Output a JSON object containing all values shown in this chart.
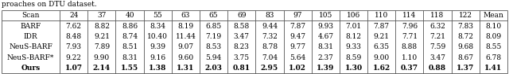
{
  "caption": "proaches on DTU dataset.",
  "columns": [
    "Scan",
    "24",
    "37",
    "40",
    "55",
    "63",
    "65",
    "69",
    "83",
    "97",
    "105",
    "106",
    "110",
    "114",
    "118",
    "122",
    "Mean"
  ],
  "rows": [
    [
      "BARF",
      "7.62",
      "8.82",
      "8.86",
      "8.34",
      "8.19",
      "6.85",
      "8.58",
      "9.44",
      "7.87",
      "9.93",
      "7.01",
      "7.87",
      "7.96",
      "6.32",
      "7.83",
      "8.10"
    ],
    [
      "IDR",
      "8.48",
      "9.21",
      "8.74",
      "10.40",
      "11.44",
      "7.19",
      "3.47",
      "7.32",
      "9.47",
      "4.67",
      "8.12",
      "9.21",
      "7.71",
      "7.21",
      "8.72",
      "8.09"
    ],
    [
      "NeuS-BARF",
      "7.93",
      "7.89",
      "8.51",
      "9.39",
      "9.07",
      "8.53",
      "8.23",
      "8.78",
      "9.77",
      "8.31",
      "9.33",
      "6.35",
      "8.88",
      "7.59",
      "9.68",
      "8.55"
    ],
    [
      "NeuS-BARF*",
      "9.22",
      "9.90",
      "8.31",
      "9.16",
      "9.60",
      "5.94",
      "3.75",
      "7.04",
      "5.64",
      "2.37",
      "8.59",
      "9.00",
      "1.10",
      "3.47",
      "8.67",
      "6.78"
    ],
    [
      "Ours",
      "1.07",
      "2.14",
      "1.55",
      "1.38",
      "1.31",
      "2.03",
      "0.81",
      "2.95",
      "1.02",
      "1.39",
      "1.30",
      "1.62",
      "0.37",
      "0.88",
      "1.37",
      "1.41"
    ]
  ],
  "bold_row_idx": 4,
  "font_size": 6.5,
  "caption_font_size": 6.5,
  "line_color": "#555555",
  "bg_color": "#ffffff",
  "text_color": "#000000"
}
